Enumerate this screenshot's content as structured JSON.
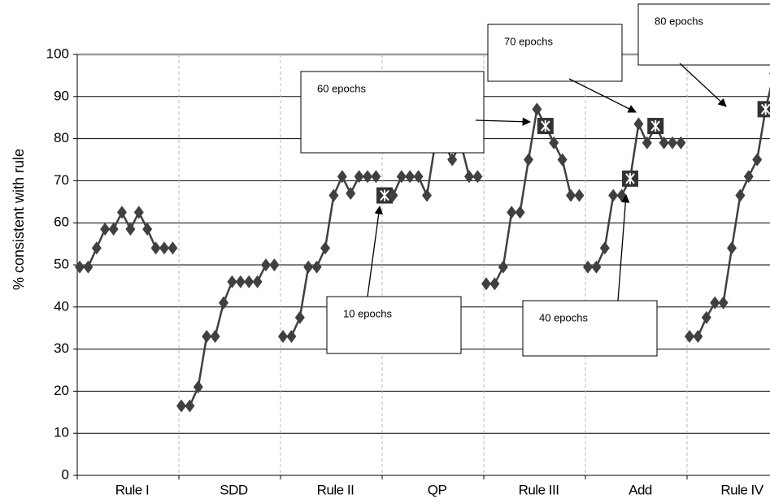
{
  "chart_data": {
    "type": "line",
    "y_label": "% consistent with rule",
    "categories": [
      "Rule I",
      "SDD",
      "Rule II",
      "QP",
      "Rule III",
      "Add",
      "Rule IV"
    ],
    "values": [
      [
        49.5,
        49.5,
        54,
        58.5,
        58.5,
        62.5,
        58.5,
        62.5,
        58.5,
        54,
        54,
        54
      ],
      [
        16.5,
        16.5,
        21,
        33,
        33,
        41,
        46,
        46,
        46,
        46,
        50,
        50
      ],
      [
        33,
        33,
        37.5,
        49.5,
        49.5,
        54,
        66.5,
        71,
        67,
        71,
        71,
        71
      ],
      [
        66.5,
        66.5,
        71,
        71,
        71,
        66.5,
        79,
        79,
        75,
        79,
        71,
        71
      ],
      [
        45.5,
        45.5,
        49.5,
        62.5,
        62.5,
        75,
        87,
        83,
        79,
        75,
        66.5,
        66.5
      ],
      [
        49.5,
        49.5,
        54,
        66.5,
        66.5,
        70.5,
        83.5,
        79,
        83,
        79,
        79,
        79
      ],
      [
        33,
        33,
        37.5,
        41,
        41,
        54,
        66.5,
        71,
        75,
        87,
        95.5,
        95.5
      ]
    ],
    "color": "#404040",
    "ylim": [
      0,
      100
    ],
    "yticks": [
      0,
      10,
      20,
      30,
      40,
      50,
      60,
      70,
      80,
      90,
      100
    ],
    "grid": true,
    "annotations": [
      "60 epochs",
      "70 epochs",
      "80 epochs",
      "10 epochs",
      "40 epochs"
    ]
  }
}
